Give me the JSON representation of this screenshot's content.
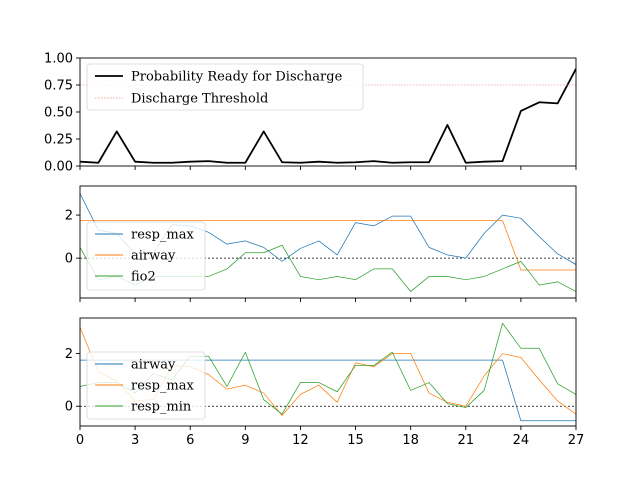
{
  "chart_data": [
    {
      "type": "line",
      "panel": "top",
      "xlim": [
        0,
        27
      ],
      "ylim": [
        0,
        1
      ],
      "xticks": [
        0,
        3,
        6,
        9,
        12,
        15,
        18,
        21,
        24,
        27
      ],
      "yticks": [
        0.0,
        0.25,
        0.5,
        0.75,
        1.0
      ],
      "ytick_labels": [
        "0.00",
        "0.25",
        "0.50",
        "0.75",
        "1.00"
      ],
      "legend_position": "upper-left",
      "series": [
        {
          "name": "Probability Ready for Discharge",
          "color": "#000000",
          "x": [
            0,
            1,
            2,
            3,
            4,
            5,
            6,
            7,
            8,
            9,
            10,
            11,
            12,
            13,
            14,
            15,
            16,
            17,
            18,
            19,
            20,
            21,
            22,
            23,
            24,
            25,
            26,
            27
          ],
          "y": [
            0.04,
            0.03,
            0.32,
            0.04,
            0.03,
            0.03,
            0.04,
            0.045,
            0.03,
            0.03,
            0.32,
            0.035,
            0.03,
            0.04,
            0.03,
            0.035,
            0.045,
            0.03,
            0.035,
            0.035,
            0.38,
            0.03,
            0.04,
            0.045,
            0.51,
            0.59,
            0.58,
            0.9
          ]
        },
        {
          "name": "Discharge Threshold",
          "color": "#f4a0a0",
          "style": "dotted",
          "x": [
            0,
            27
          ],
          "y": [
            0.75,
            0.75
          ]
        }
      ]
    },
    {
      "type": "line",
      "panel": "middle",
      "xlim": [
        0,
        27
      ],
      "ylim": [
        -1.85,
        3.35
      ],
      "yticks": [
        0,
        2
      ],
      "ytick_labels": [
        "0",
        "2"
      ],
      "legend_position": "center-left",
      "zero_line": true,
      "series": [
        {
          "name": "resp_max",
          "color": "#1f77b4",
          "x": [
            0,
            1,
            2,
            3,
            4,
            5,
            6,
            7,
            8,
            9,
            10,
            11,
            12,
            13,
            14,
            15,
            16,
            17,
            18,
            19,
            20,
            21,
            22,
            23,
            24,
            25,
            26,
            27
          ],
          "y": [
            3.0,
            1.3,
            1.15,
            0.2,
            0.25,
            1.55,
            1.5,
            1.2,
            0.65,
            0.8,
            0.5,
            -0.15,
            0.45,
            0.8,
            0.15,
            1.65,
            1.5,
            1.95,
            1.95,
            0.5,
            0.15,
            0.0,
            1.15,
            2.0,
            1.85,
            1.0,
            0.2,
            -0.3
          ]
        },
        {
          "name": "airway",
          "color": "#ff7f0e",
          "x": [
            0,
            1,
            2,
            3,
            4,
            5,
            6,
            7,
            8,
            9,
            10,
            11,
            12,
            13,
            14,
            15,
            16,
            17,
            18,
            19,
            20,
            21,
            22,
            23,
            24,
            25,
            26,
            27
          ],
          "y": [
            1.75,
            1.75,
            1.75,
            1.75,
            1.75,
            1.75,
            1.75,
            1.75,
            1.75,
            1.75,
            1.75,
            1.75,
            1.75,
            1.75,
            1.75,
            1.75,
            1.75,
            1.75,
            1.75,
            1.75,
            1.75,
            1.75,
            1.75,
            1.75,
            -0.55,
            -0.55,
            -0.55,
            -0.55
          ]
        },
        {
          "name": "fio2",
          "color": "#2ca02c",
          "x": [
            0,
            1,
            2,
            3,
            4,
            5,
            6,
            7,
            8,
            9,
            10,
            11,
            12,
            13,
            14,
            15,
            16,
            17,
            18,
            19,
            20,
            21,
            22,
            23,
            24,
            25,
            26,
            27
          ],
          "y": [
            0.5,
            -1.0,
            -0.85,
            -1.25,
            -0.85,
            -0.85,
            -0.85,
            -0.85,
            -0.5,
            0.25,
            0.25,
            0.6,
            -0.85,
            -1.0,
            -0.85,
            -1.0,
            -0.5,
            -0.5,
            -1.55,
            -0.85,
            -0.85,
            -1.0,
            -0.85,
            -0.5,
            -0.15,
            -1.25,
            -1.1,
            -1.55
          ]
        }
      ]
    },
    {
      "type": "line",
      "panel": "bottom",
      "xlim": [
        0,
        27
      ],
      "ylim": [
        -0.75,
        3.35
      ],
      "yticks": [
        0,
        2
      ],
      "ytick_labels": [
        "0",
        "2"
      ],
      "xticks": [
        0,
        3,
        6,
        9,
        12,
        15,
        18,
        21,
        24,
        27
      ],
      "xtick_labels": [
        "0",
        "3",
        "6",
        "9",
        "12",
        "15",
        "18",
        "21",
        "24",
        "27"
      ],
      "legend_position": "center-left",
      "zero_line": true,
      "series": [
        {
          "name": "airway",
          "color": "#1f77b4",
          "x": [
            0,
            1,
            2,
            3,
            4,
            5,
            6,
            7,
            8,
            9,
            10,
            11,
            12,
            13,
            14,
            15,
            16,
            17,
            18,
            19,
            20,
            21,
            22,
            23,
            24,
            25,
            26,
            27
          ],
          "y": [
            1.75,
            1.75,
            1.75,
            1.75,
            1.75,
            1.75,
            1.75,
            1.75,
            1.75,
            1.75,
            1.75,
            1.75,
            1.75,
            1.75,
            1.75,
            1.75,
            1.75,
            1.75,
            1.75,
            1.75,
            1.75,
            1.75,
            1.75,
            1.75,
            -0.55,
            -0.55,
            -0.55,
            -0.55
          ]
        },
        {
          "name": "resp_max",
          "color": "#ff7f0e",
          "x": [
            0,
            1,
            2,
            3,
            4,
            5,
            6,
            7,
            8,
            9,
            10,
            11,
            12,
            13,
            14,
            15,
            16,
            17,
            18,
            19,
            20,
            21,
            22,
            23,
            24,
            25,
            26,
            27
          ],
          "y": [
            3.0,
            1.3,
            0.95,
            0.2,
            0.25,
            1.55,
            1.5,
            1.2,
            0.65,
            0.8,
            0.5,
            -0.35,
            0.45,
            0.8,
            0.15,
            1.65,
            1.5,
            2.0,
            2.0,
            0.5,
            0.15,
            0.0,
            1.15,
            2.0,
            1.85,
            1.0,
            0.2,
            -0.3
          ]
        },
        {
          "name": "resp_min",
          "color": "#2ca02c",
          "x": [
            0,
            1,
            2,
            3,
            4,
            5,
            6,
            7,
            8,
            9,
            10,
            11,
            12,
            13,
            14,
            15,
            16,
            17,
            18,
            19,
            20,
            21,
            22,
            23,
            24,
            25,
            26,
            27
          ],
          "y": [
            0.75,
            0.9,
            0.9,
            0.5,
            1.25,
            1.0,
            1.9,
            1.9,
            0.75,
            2.05,
            0.25,
            -0.3,
            0.9,
            0.9,
            0.55,
            1.55,
            1.55,
            2.05,
            0.6,
            0.9,
            0.1,
            -0.05,
            0.6,
            3.15,
            2.2,
            2.2,
            0.85,
            0.45
          ]
        }
      ]
    }
  ]
}
